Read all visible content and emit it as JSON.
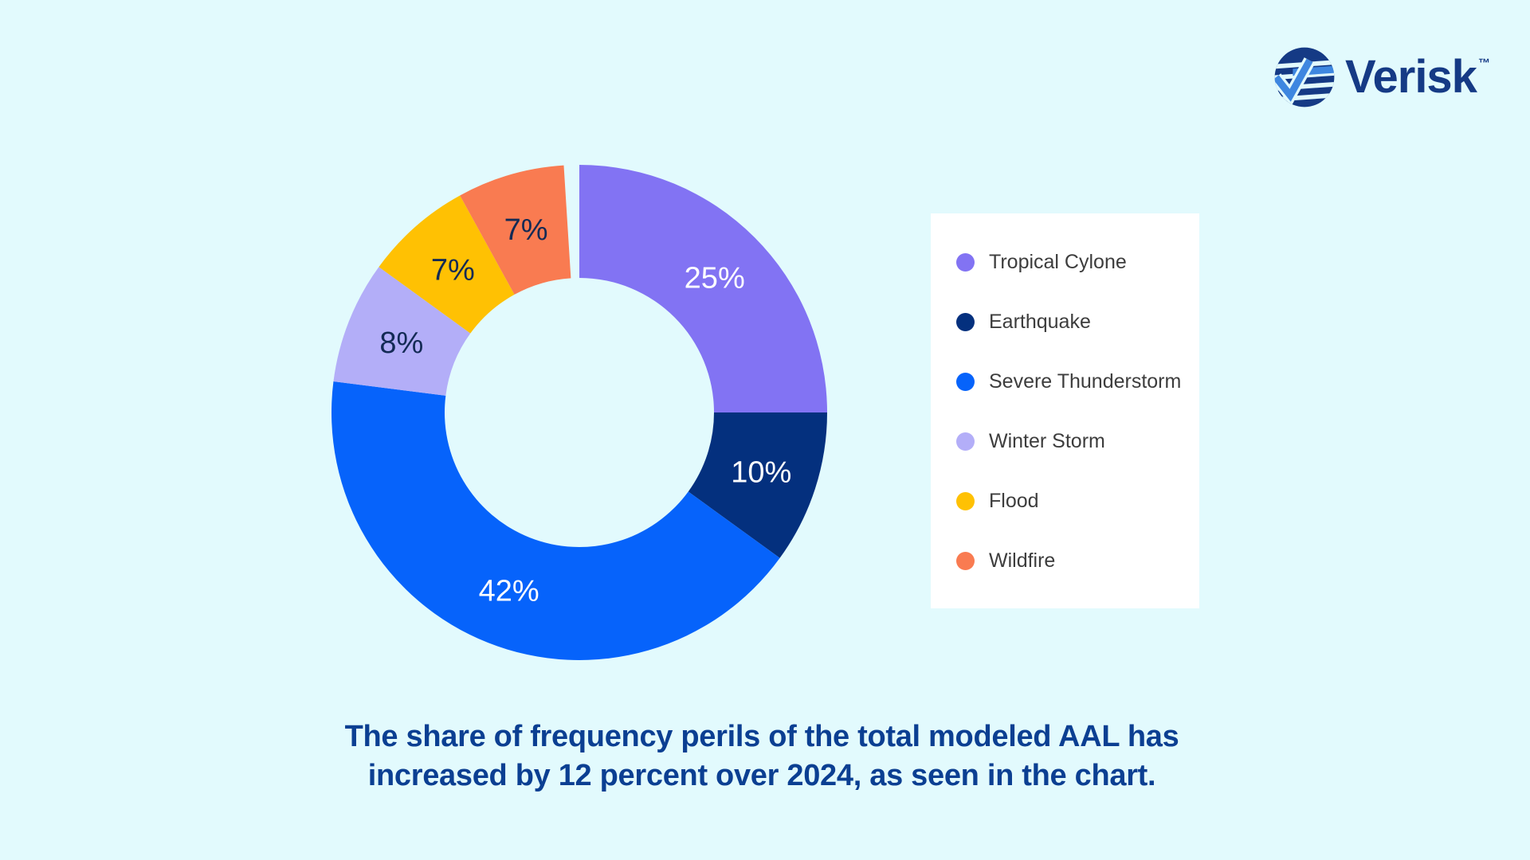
{
  "theme": {
    "background": "#e2fafd",
    "card": "#ffffff",
    "caption_text": "#0b3f92",
    "legend_text": "#3d3d3d",
    "logo_navy": "#153a85",
    "logo_blue": "#3e87e0"
  },
  "logo": {
    "brand": "Verisk",
    "trademark": "™"
  },
  "chart_data": {
    "type": "pie",
    "subtype": "donut",
    "title": "",
    "start_angle_deg": 0,
    "direction": "clockwise",
    "legend_position": "right",
    "categories": [
      "Tropical Cylone",
      "Earthquake",
      "Severe Thunderstorm",
      "Winter Storm",
      "Flood",
      "Wildfire"
    ],
    "values": [
      25,
      10,
      42,
      8,
      7,
      7
    ],
    "labels": [
      "25%",
      "10%",
      "42%",
      "8%",
      "7%",
      "7%"
    ],
    "colors": [
      "#8273f3",
      "#04307e",
      "#0663fb",
      "#b3aef8",
      "#ffc103",
      "#f97b51"
    ],
    "label_colors": [
      "#ffffff",
      "#ffffff",
      "#ffffff",
      "#132a55",
      "#132a55",
      "#132a55"
    ]
  },
  "caption": {
    "line1": "The share of frequency perils of the total modeled AAL has",
    "line2": "increased by 12 percent over 2024, as seen in the chart."
  }
}
